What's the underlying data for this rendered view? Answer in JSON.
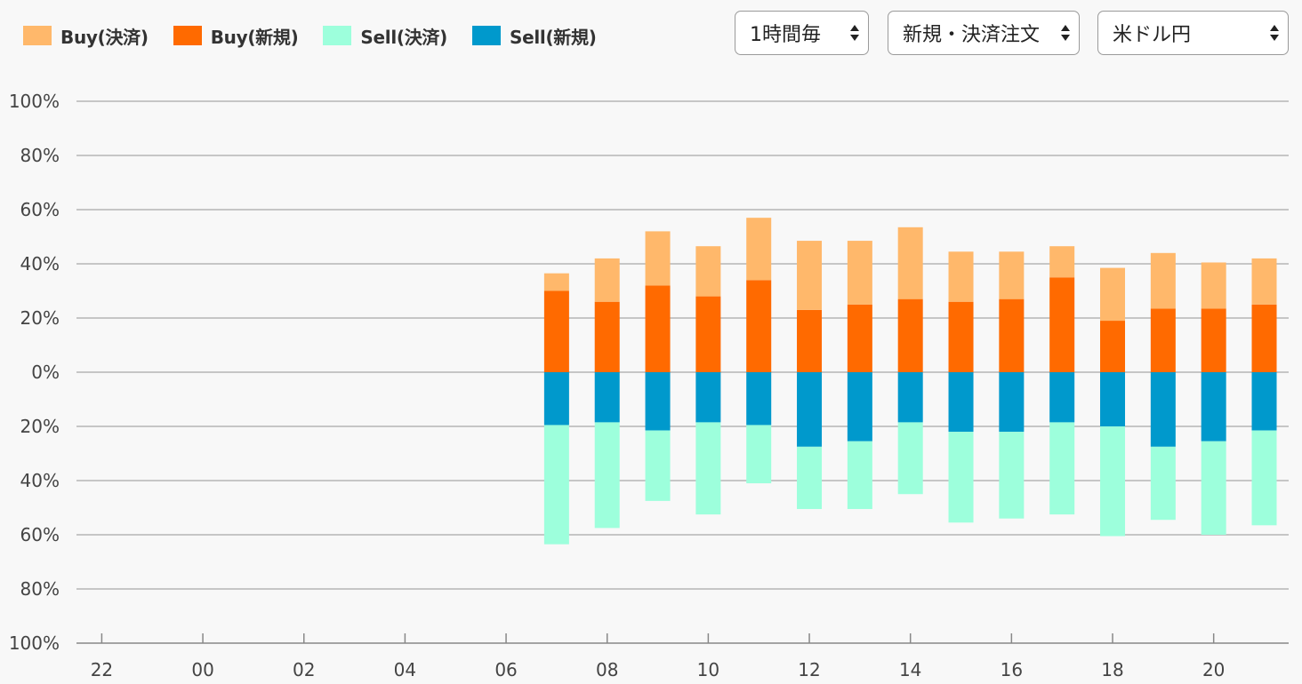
{
  "legend": [
    {
      "label": "Buy(決済)",
      "color": "#ffb86b"
    },
    {
      "label": "Buy(新規)",
      "color": "#ff6a00"
    },
    {
      "label": "Sell(決済)",
      "color": "#9dffdc"
    },
    {
      "label": "Sell(新規)",
      "color": "#0099cc"
    }
  ],
  "controls": {
    "interval": "1時間毎",
    "order_type": "新規・決済注文",
    "pair": "米ドル円"
  },
  "chart_data": {
    "type": "bar",
    "stacked": true,
    "diverging": true,
    "y_tick_labels": [
      "100%",
      "80%",
      "60%",
      "40%",
      "20%",
      "0%",
      "20%",
      "40%",
      "60%",
      "80%",
      "100%"
    ],
    "ylim": [
      -100,
      100
    ],
    "x_tick_labels": [
      "22",
      "00",
      "02",
      "04",
      "06",
      "08",
      "10",
      "12",
      "14",
      "16",
      "18",
      "20"
    ],
    "categories": [
      "22",
      "23",
      "00",
      "01",
      "02",
      "03",
      "04",
      "05",
      "06",
      "07",
      "08",
      "09",
      "10",
      "11",
      "12",
      "13",
      "14",
      "15",
      "16",
      "17",
      "18",
      "19",
      "20",
      "21"
    ],
    "series": [
      {
        "name": "Buy(新規)",
        "color": "#ff6a00",
        "values": [
          null,
          null,
          null,
          null,
          null,
          null,
          null,
          null,
          null,
          30,
          26,
          32,
          28,
          34,
          23,
          25,
          27,
          26,
          27,
          35,
          19,
          23.5,
          23.5,
          25
        ]
      },
      {
        "name": "Buy(決済)",
        "color": "#ffb86b",
        "values": [
          null,
          null,
          null,
          null,
          null,
          null,
          null,
          null,
          null,
          6.5,
          16,
          20,
          18.5,
          23,
          25.5,
          23.5,
          26.5,
          18.5,
          17.5,
          11.5,
          19.5,
          20.5,
          17,
          17
        ]
      },
      {
        "name": "Sell(新規)",
        "color": "#0099cc",
        "values": [
          null,
          null,
          null,
          null,
          null,
          null,
          null,
          null,
          null,
          -19.5,
          -18.5,
          -21.5,
          -18.5,
          -19.5,
          -27.5,
          -25.5,
          -18.5,
          -22,
          -22,
          -18.5,
          -20,
          -27.5,
          -25.5,
          -21.5
        ]
      },
      {
        "name": "Sell(決済)",
        "color": "#9dffdc",
        "values": [
          null,
          null,
          null,
          null,
          null,
          null,
          null,
          null,
          null,
          -44,
          -39,
          -26,
          -34,
          -21.5,
          -23,
          -25,
          -26.5,
          -33.5,
          -32,
          -34,
          -40.5,
          -27,
          -34.5,
          -35
        ]
      }
    ],
    "grid": true,
    "legend_position": "top-left"
  }
}
